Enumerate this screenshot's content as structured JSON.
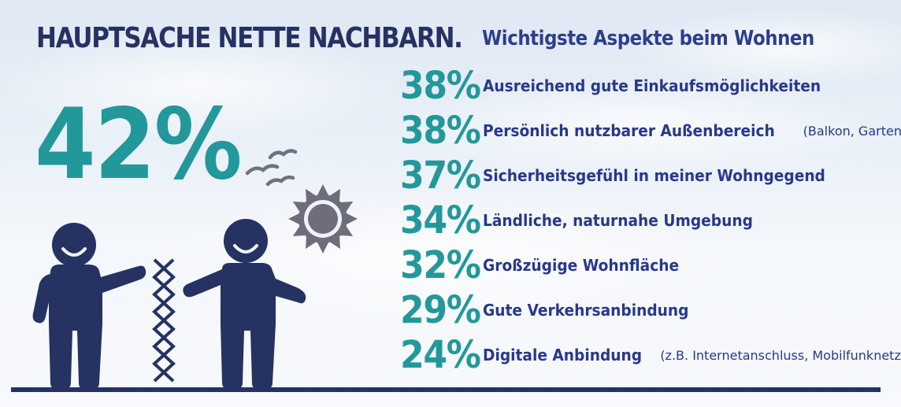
{
  "header": {
    "title": "HAUPTSACHE NETTE NACHBARN.",
    "subtitle": "Wichtigste Aspekte beim Wohnen"
  },
  "highlight": {
    "value": "42%"
  },
  "items": [
    {
      "value": "38%",
      "label": "Ausreichend gute Einkaufsmöglichkeiten",
      "note": ""
    },
    {
      "value": "38%",
      "label": "Persönlich nutzbarer Außenbereich",
      "note": "(Balkon, Garten)"
    },
    {
      "value": "37%",
      "label": "Sicherheitsgefühl in meiner Wohngegend",
      "note": ""
    },
    {
      "value": "34%",
      "label": "Ländliche, naturnahe Umgebung",
      "note": ""
    },
    {
      "value": "32%",
      "label": "Großzügige Wohnfläche",
      "note": ""
    },
    {
      "value": "29%",
      "label": "Gute Verkehrsanbindung",
      "note": ""
    },
    {
      "value": "24%",
      "label": "Digitale Anbindung",
      "note": "(z.B. Internetanschluss, Mobilfunknetz)"
    }
  ],
  "colors": {
    "navy": "#253262",
    "teal": "#23989b",
    "blue_text": "#28388a",
    "sun_gray": "#6f6d7c"
  },
  "icons": [
    "person-left-icon",
    "person-right-icon",
    "fence-icon",
    "sun-icon",
    "birds-icon",
    "ground-line"
  ]
}
